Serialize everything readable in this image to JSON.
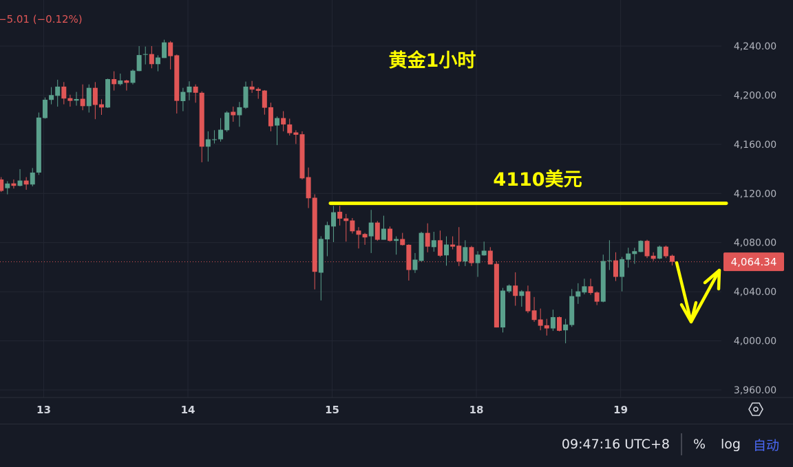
{
  "header": {
    "change_text": "−5.01 (−0.12%)"
  },
  "annotations": {
    "title": "黄金1小时",
    "level_label": "4110美元",
    "level_price": 4112
  },
  "footer": {
    "clock": "09:47:16 UTC+8",
    "percent": "%",
    "log": "log",
    "auto": "自动"
  },
  "icons": {
    "settings": "hexagon-settings-icon"
  },
  "colors": {
    "up": "#5aa08c",
    "down": "#e05656",
    "annotation": "#ffff00",
    "background": "#161a25",
    "grid": "#232733"
  },
  "chart_data": {
    "type": "candlestick",
    "interval": "1小时",
    "ylim": [
      3950,
      4255
    ],
    "y_ticks": [
      "4,240.00",
      "4,200.00",
      "4,160.00",
      "4,120.00",
      "4,080.00",
      "4,040.00",
      "4,000.00",
      "3,960.00"
    ],
    "y_tick_values": [
      4240,
      4200,
      4160,
      4120,
      4080,
      4040,
      4000,
      3960
    ],
    "x_ticks": [
      {
        "label": "13",
        "index": 7
      },
      {
        "label": "14",
        "index": 30
      },
      {
        "label": "15",
        "index": 53
      },
      {
        "label": "18",
        "index": 76
      },
      {
        "label": "19",
        "index": 99
      }
    ],
    "last_price": 4064.34,
    "last_price_label": "4,064.34",
    "grid": true,
    "ohlc": [
      [
        4131.4,
        4133.3,
        4121.2,
        4122.1
      ],
      [
        4124.3,
        4130.0,
        4119.3,
        4128.1
      ],
      [
        4128.2,
        4131.4,
        4124.0,
        4126.2
      ],
      [
        4126.2,
        4139.8,
        4125.8,
        4130.5
      ],
      [
        4130.5,
        4133.3,
        4123.0,
        4127.3
      ],
      [
        4127.3,
        4140.7,
        4125.8,
        4137.0
      ],
      [
        4137.0,
        4185.9,
        4135.1,
        4181.8
      ],
      [
        4181.4,
        4198.2,
        4180.9,
        4196.3
      ],
      [
        4196.2,
        4206.6,
        4192.6,
        4200.1
      ],
      [
        4199.5,
        4212.6,
        4190.7,
        4207.0
      ],
      [
        4207.0,
        4210.7,
        4192.6,
        4197.3
      ],
      [
        4197.6,
        4200.4,
        4190.7,
        4195.4
      ],
      [
        4195.6,
        4202.7,
        4191.5,
        4196.9
      ],
      [
        4197.1,
        4208.8,
        4187.8,
        4191.1
      ],
      [
        4191.1,
        4208.8,
        4185.9,
        4206.0
      ],
      [
        4206.0,
        4210.7,
        4180.5,
        4192.1
      ],
      [
        4192.6,
        4196.7,
        4184.0,
        4190.0
      ],
      [
        4190.0,
        4213.5,
        4189.6,
        4213.1
      ],
      [
        4213.1,
        4219.5,
        4203.8,
        4209.0
      ],
      [
        4209.0,
        4217.6,
        4207.9,
        4212.0
      ],
      [
        4212.0,
        4212.6,
        4203.8,
        4210.1
      ],
      [
        4210.1,
        4221.0,
        4208.8,
        4220.0
      ],
      [
        4219.7,
        4240.0,
        4219.5,
        4232.7
      ],
      [
        4232.9,
        4239.6,
        4225.1,
        4233.5
      ],
      [
        4233.5,
        4240.0,
        4221.9,
        4225.3
      ],
      [
        4225.3,
        4232.5,
        4219.5,
        4230.7
      ],
      [
        4230.3,
        4245.2,
        4230.3,
        4243.0
      ],
      [
        4243.0,
        4244.1,
        4221.0,
        4231.8
      ],
      [
        4232.5,
        4233.1,
        4185.1,
        4195.4
      ],
      [
        4195.2,
        4206.0,
        4187.0,
        4202.7
      ],
      [
        4202.3,
        4211.3,
        4195.8,
        4207.0
      ],
      [
        4207.0,
        4208.8,
        4193.9,
        4202.0
      ],
      [
        4202.0,
        4203.2,
        4145.4,
        4158.1
      ],
      [
        4158.1,
        4170.6,
        4146.0,
        4164.1
      ],
      [
        4163.5,
        4171.5,
        4160.7,
        4164.1
      ],
      [
        4164.1,
        4181.4,
        4162.2,
        4171.9
      ],
      [
        4171.5,
        4187.0,
        4170.2,
        4185.9
      ],
      [
        4186.5,
        4190.7,
        4178.4,
        4183.7
      ],
      [
        4183.7,
        4194.5,
        4174.3,
        4190.2
      ],
      [
        4189.8,
        4211.1,
        4188.9,
        4207.0
      ],
      [
        4207.0,
        4211.6,
        4201.9,
        4204.6
      ],
      [
        4205.1,
        4206.4,
        4197.1,
        4203.6
      ],
      [
        4203.8,
        4204.2,
        4184.2,
        4189.8
      ],
      [
        4190.2,
        4193.9,
        4170.6,
        4174.7
      ],
      [
        4175.3,
        4182.7,
        4159.4,
        4181.4
      ],
      [
        4181.4,
        4187.0,
        4170.6,
        4176.2
      ],
      [
        4176.2,
        4180.9,
        4167.2,
        4169.1
      ],
      [
        4169.7,
        4171.5,
        4160.3,
        4167.8
      ],
      [
        4168.2,
        4170.6,
        4131.4,
        4132.3
      ],
      [
        4133.3,
        4141.1,
        4108.1,
        4116.1
      ],
      [
        4116.5,
        4119.3,
        4041.9,
        4056.2
      ],
      [
        4055.5,
        4085.2,
        4032.9,
        4083.0
      ],
      [
        4082.6,
        4097.0,
        4068.9,
        4094.2
      ],
      [
        4093.1,
        4109.9,
        4080.4,
        4104.7
      ],
      [
        4105.1,
        4109.9,
        4093.9,
        4099.5
      ],
      [
        4099.7,
        4103.4,
        4080.8,
        4097.6
      ],
      [
        4098.0,
        4100.0,
        4087.4,
        4089.2
      ],
      [
        4089.8,
        4092.6,
        4075.2,
        4086.4
      ],
      [
        4087.0,
        4087.9,
        4078.2,
        4084.2
      ],
      [
        4085.1,
        4106.6,
        4071.5,
        4096.3
      ],
      [
        4096.3,
        4097.6,
        4081.4,
        4082.3
      ],
      [
        4082.3,
        4101.9,
        4082.3,
        4091.3
      ],
      [
        4091.3,
        4093.1,
        4080.8,
        4081.4
      ],
      [
        4081.4,
        4085.1,
        4070.2,
        4082.9
      ],
      [
        4082.9,
        4087.9,
        4077.6,
        4078.0
      ],
      [
        4078.2,
        4078.6,
        4049.1,
        4057.7
      ],
      [
        4057.7,
        4071.5,
        4055.3,
        4066.1
      ],
      [
        4065.1,
        4088.8,
        4064.6,
        4087.9
      ],
      [
        4087.9,
        4095.7,
        4072.1,
        4076.7
      ],
      [
        4076.3,
        4088.8,
        4072.6,
        4081.9
      ],
      [
        4081.9,
        4089.8,
        4068.3,
        4069.3
      ],
      [
        4069.6,
        4085.1,
        4061.2,
        4078.4
      ],
      [
        4078.4,
        4085.1,
        4074.5,
        4076.7
      ],
      [
        4077.5,
        4092.6,
        4060.9,
        4064.6
      ],
      [
        4064.6,
        4081.9,
        4060.9,
        4076.3
      ],
      [
        4076.3,
        4077.3,
        4060.9,
        4063.3
      ],
      [
        4063.3,
        4073.0,
        4052.1,
        4070.2
      ],
      [
        4069.6,
        4080.8,
        4069.3,
        4073.4
      ],
      [
        4073.4,
        4076.3,
        4062.2,
        4062.2
      ],
      [
        4062.7,
        4064.6,
        4010.9,
        4010.9
      ],
      [
        4010.9,
        4043.1,
        4006.8,
        4040.9
      ],
      [
        4040.3,
        4045.9,
        4039.0,
        4045.0
      ],
      [
        4045.0,
        4055.8,
        4028.6,
        4036.6
      ],
      [
        4036.6,
        4041.3,
        4027.8,
        4040.3
      ],
      [
        4040.3,
        4045.0,
        4022.6,
        4024.1
      ],
      [
        4024.8,
        4035.7,
        4015.5,
        4017.0
      ],
      [
        4017.4,
        4026.3,
        4008.6,
        4012.3
      ],
      [
        4012.7,
        4017.9,
        4004.3,
        4010.1
      ],
      [
        4010.1,
        4025.4,
        4008.1,
        4019.3
      ],
      [
        4019.3,
        4019.8,
        4007.7,
        4008.2
      ],
      [
        4008.6,
        4017.9,
        3998.0,
        4013.3
      ],
      [
        4012.9,
        4042.2,
        4011.4,
        4036.4
      ],
      [
        4036.0,
        4046.9,
        4030.1,
        4040.3
      ],
      [
        4039.4,
        4050.6,
        4037.9,
        4044.4
      ],
      [
        4044.4,
        4050.6,
        4037.5,
        4039.0
      ],
      [
        4039.4,
        4040.3,
        4029.1,
        4031.9
      ],
      [
        4031.9,
        4070.2,
        4031.4,
        4065.0
      ],
      [
        4065.0,
        4081.9,
        4057.7,
        4065.5
      ],
      [
        4065.5,
        4072.1,
        4048.7,
        4052.1
      ],
      [
        4052.1,
        4068.3,
        4040.3,
        4066.5
      ],
      [
        4066.1,
        4075.8,
        4059.6,
        4071.1
      ],
      [
        4070.7,
        4075.8,
        4062.7,
        4073.0
      ],
      [
        4072.4,
        4081.9,
        4072.1,
        4081.4
      ],
      [
        4081.4,
        4082.3,
        4067.4,
        4068.9
      ],
      [
        4069.3,
        4072.1,
        4065.1,
        4066.8
      ],
      [
        4067.0,
        4077.6,
        4066.5,
        4076.7
      ],
      [
        4076.7,
        4077.6,
        4067.4,
        4068.9
      ],
      [
        4069.3,
        4070.2,
        4061.4,
        4064.34
      ]
    ]
  }
}
